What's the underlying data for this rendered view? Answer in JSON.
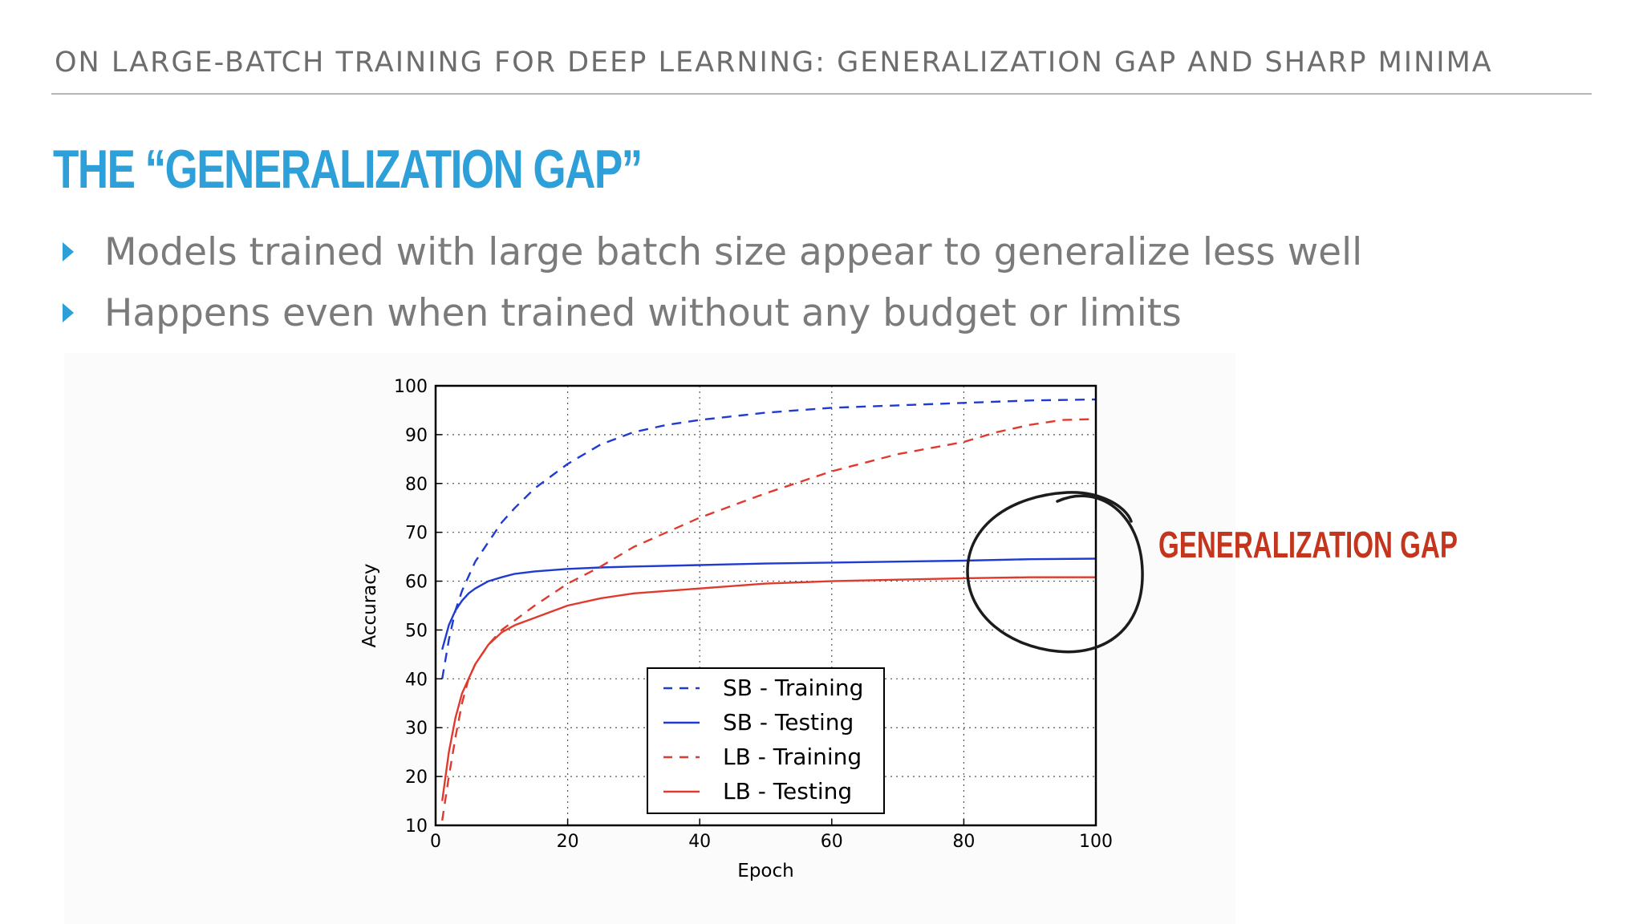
{
  "header": {
    "text": "ON LARGE-BATCH TRAINING FOR DEEP LEARNING: GENERALIZATION GAP AND SHARP MINIMA"
  },
  "title": "THE “GENERALIZATION GAP”",
  "bullets": [
    "Models trained with large batch size appear to generalize less well",
    "Happens even when trained without any budget or limits"
  ],
  "annotation": {
    "label": "GENERALIZATION GAP",
    "color": "#c4351d"
  },
  "colors": {
    "accent": "#2d9fd9",
    "sb": "#1f3bd1",
    "lb": "#e03a2f"
  },
  "chart_data": {
    "type": "line",
    "xlabel": "Epoch",
    "ylabel": "Accuracy",
    "xlim": [
      0,
      100
    ],
    "ylim": [
      10,
      100
    ],
    "xticks": [
      0,
      20,
      40,
      60,
      80,
      100
    ],
    "yticks": [
      10,
      20,
      30,
      40,
      50,
      60,
      70,
      80,
      90,
      100
    ],
    "grid": true,
    "legend_position": "lower-center",
    "series": [
      {
        "name": "SB - Training",
        "style": "dashed",
        "color": "#1f3bd1",
        "x": [
          1,
          2,
          3,
          4,
          5,
          6,
          8,
          10,
          12,
          15,
          18,
          20,
          25,
          30,
          35,
          40,
          50,
          60,
          70,
          80,
          90,
          100
        ],
        "y": [
          40,
          48,
          54,
          58,
          61,
          64,
          68,
          72,
          75,
          79,
          82,
          84,
          88,
          90.5,
          92,
          93,
          94.5,
          95.5,
          96,
          96.5,
          97,
          97.2
        ]
      },
      {
        "name": "SB - Testing",
        "style": "solid",
        "color": "#1f3bd1",
        "x": [
          1,
          2,
          3,
          4,
          5,
          6,
          8,
          10,
          12,
          15,
          20,
          25,
          30,
          40,
          50,
          60,
          70,
          80,
          90,
          100
        ],
        "y": [
          46,
          51,
          54,
          56,
          57.5,
          58.5,
          60,
          60.8,
          61.5,
          62,
          62.5,
          62.8,
          63,
          63.3,
          63.6,
          63.8,
          64,
          64.2,
          64.5,
          64.6
        ]
      },
      {
        "name": "LB - Training",
        "style": "dashed",
        "color": "#e03a2f",
        "x": [
          1,
          2,
          3,
          4,
          5,
          6,
          8,
          10,
          12,
          15,
          20,
          25,
          30,
          40,
          50,
          60,
          70,
          80,
          85,
          90,
          95,
          100
        ],
        "y": [
          11,
          20,
          28,
          35,
          40,
          43,
          47,
          50,
          52,
          55,
          59.5,
          63,
          67,
          73,
          78,
          82.5,
          86,
          88.5,
          90.5,
          92,
          93,
          93.2
        ]
      },
      {
        "name": "LB - Testing",
        "style": "solid",
        "color": "#e03a2f",
        "x": [
          1,
          2,
          3,
          4,
          5,
          6,
          8,
          10,
          12,
          15,
          20,
          25,
          30,
          40,
          50,
          60,
          70,
          80,
          90,
          100
        ],
        "y": [
          15,
          25,
          32,
          37,
          40,
          43,
          47,
          49.5,
          51,
          52.5,
          55,
          56.5,
          57.5,
          58.5,
          59.5,
          60,
          60.3,
          60.6,
          60.8,
          60.8
        ]
      }
    ]
  }
}
